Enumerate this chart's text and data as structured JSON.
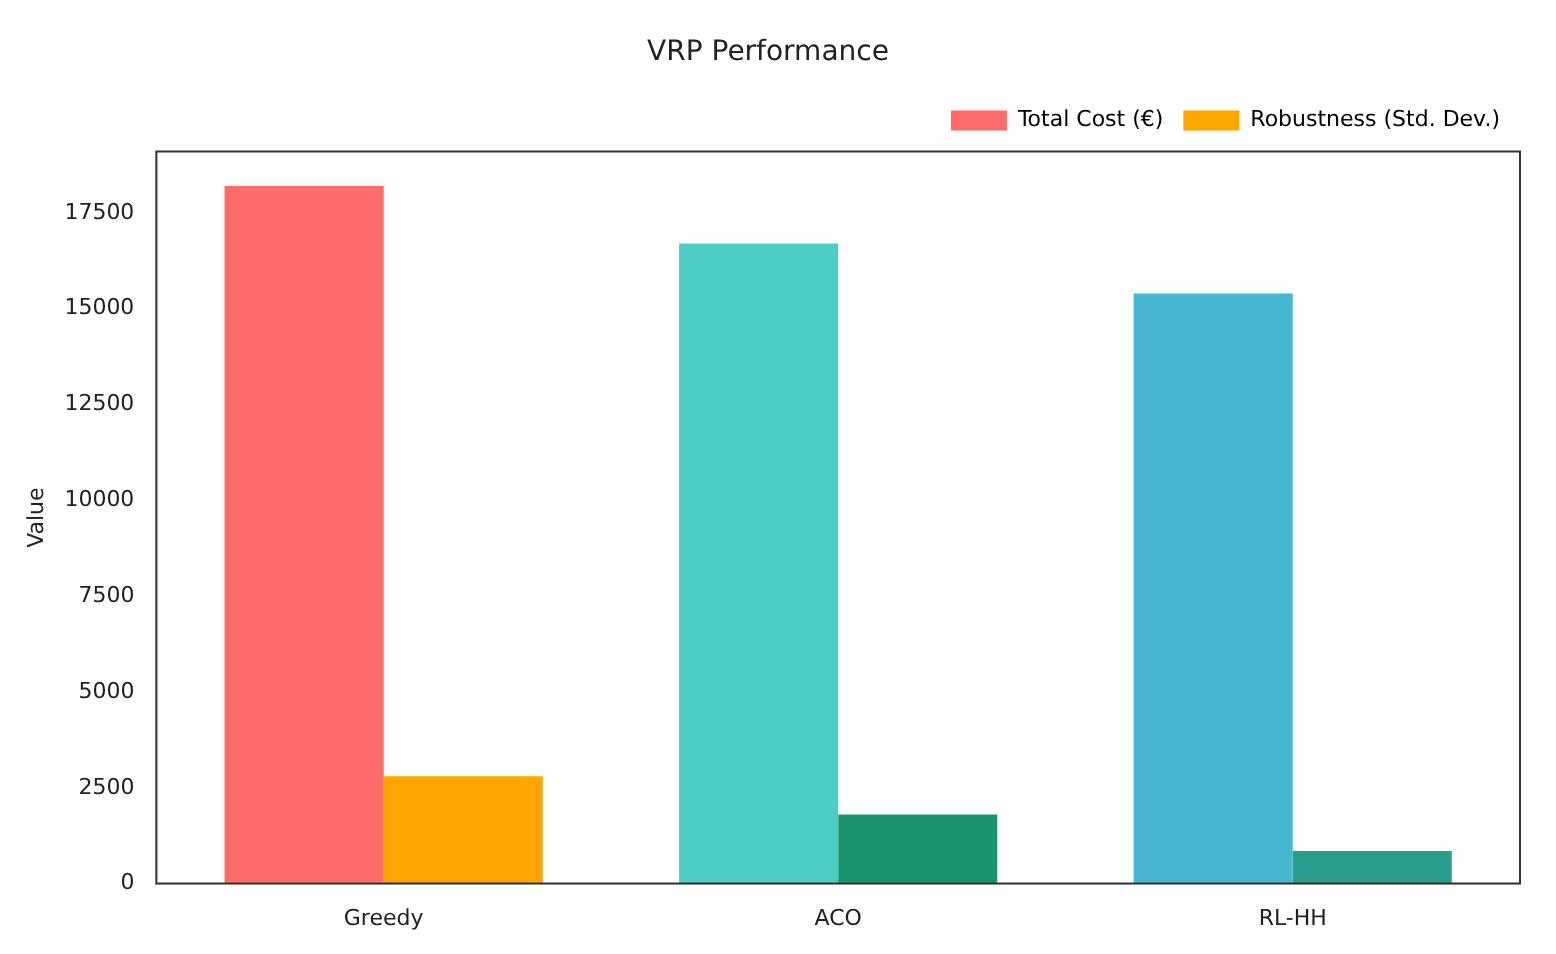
{
  "chart_data": {
    "type": "bar",
    "title": "VRP Performance",
    "ylabel": "Value",
    "categories": [
      "Greedy",
      "ACO",
      "RL-HH"
    ],
    "series": [
      {
        "name": "Total Cost (€)",
        "colors": [
          "#ff6b6b",
          "#4ecdc4",
          "#45b7d1"
        ],
        "values": [
          18200,
          16700,
          15400
        ]
      },
      {
        "name": "Robustness (Std. Dev.)",
        "colors": [
          "#ffa500",
          "#1a936f",
          "#2a9d8f"
        ],
        "values": [
          2800,
          1800,
          850
        ]
      }
    ],
    "ylim": [
      0,
      19100
    ],
    "yticks": [
      0,
      2500,
      5000,
      7500,
      10000,
      12500,
      15000,
      17500
    ],
    "grid": false,
    "legend": "top right"
  }
}
